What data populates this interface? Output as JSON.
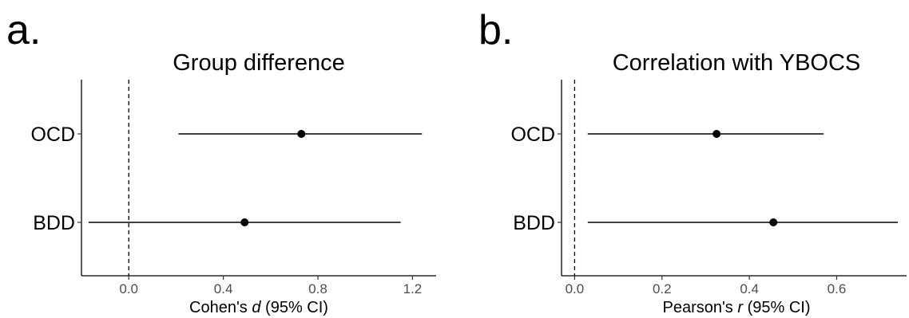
{
  "chart_data": [
    {
      "panel_label": "a.",
      "type": "forest",
      "title": "Group difference",
      "xlabel": {
        "prefix": "Cohen's ",
        "italic": "d",
        "suffix": " (95% CI)"
      },
      "xlim": [
        -0.2,
        1.3
      ],
      "xticks": [
        0.0,
        0.4,
        0.8,
        1.2
      ],
      "xtick_labels": [
        "0.0",
        "0.4",
        "0.8",
        "1.2"
      ],
      "reference_line": 0,
      "categories": [
        "OCD",
        "BDD"
      ],
      "estimates": [
        0.73,
        0.49
      ],
      "ci_low": [
        0.21,
        -0.17
      ],
      "ci_high": [
        1.24,
        1.15
      ],
      "grid": false
    },
    {
      "panel_label": "b.",
      "type": "forest",
      "title": "Correlation with YBOCS",
      "xlabel": {
        "prefix": "Pearson's ",
        "italic": "r",
        "suffix": " (95% CI)"
      },
      "xlim": [
        -0.03,
        0.76
      ],
      "xticks": [
        0.0,
        0.2,
        0.4,
        0.6
      ],
      "xtick_labels": [
        "0.0",
        "0.2",
        "0.4",
        "0.6"
      ],
      "reference_line": 0,
      "categories": [
        "OCD",
        "BDD"
      ],
      "estimates": [
        0.325,
        0.455
      ],
      "ci_low": [
        0.03,
        0.03
      ],
      "ci_high": [
        0.57,
        0.74
      ],
      "grid": false
    }
  ]
}
